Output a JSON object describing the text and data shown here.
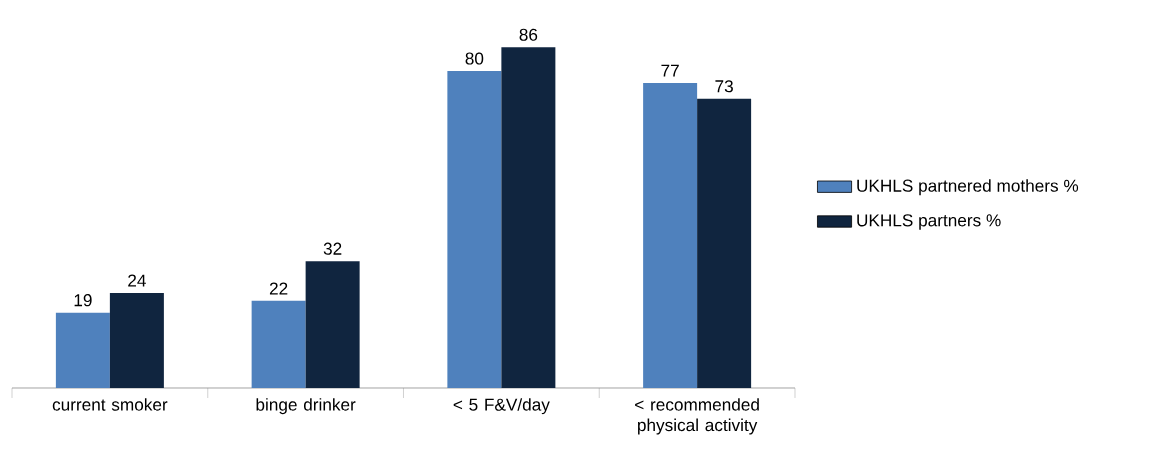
{
  "chart_data": {
    "type": "bar",
    "categories": [
      "current smoker",
      "binge drinker",
      "< 5 F&V/day",
      "< recommended physical activity"
    ],
    "series": [
      {
        "name": "UKHLS partnered mothers %",
        "color": "#4f81bd",
        "values": [
          19,
          22,
          80,
          77
        ]
      },
      {
        "name": "UKHLS partners %",
        "color": "#10253f",
        "values": [
          24,
          32,
          86,
          73
        ]
      }
    ],
    "data_labels": true,
    "legend": "right",
    "tick_labels": "x"
  }
}
